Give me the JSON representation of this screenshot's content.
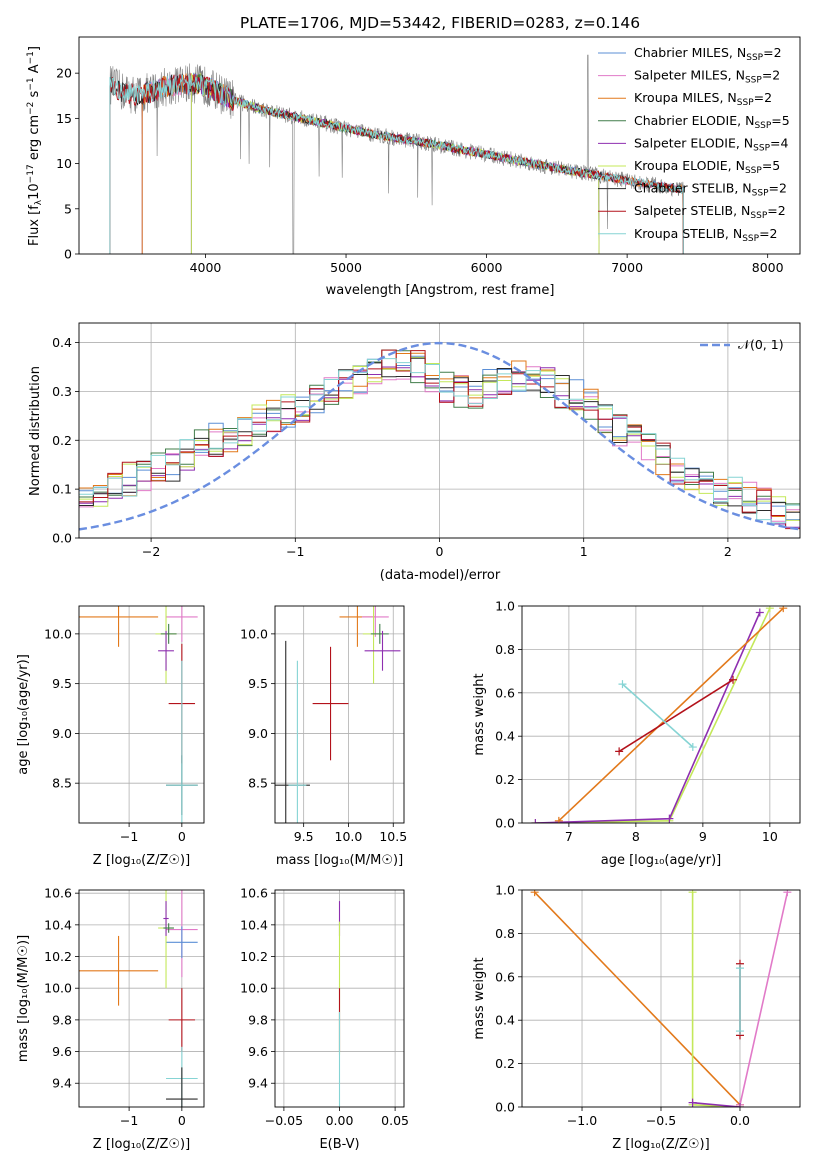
{
  "colors": {
    "Chabrier MILES": "#5b8fd6",
    "Salpeter MILES": "#e17ac8",
    "Kroupa MILES": "#e2791b",
    "Chabrier ELODIE": "#417d4a",
    "Salpeter ELODIE": "#8e2fb0",
    "Kroupa ELODIE": "#c4e85a",
    "Chabrier STELIB": "#2b2b2b",
    "Salpeter STELIB": "#b3121b",
    "Kroupa STELIB": "#86d4d4",
    "data": "#808080",
    "gauss": "#6a8ee0",
    "grid": "#b0b0b0"
  },
  "chart_data": [
    {
      "type": "line",
      "title": "PLATE=1706, MJD=53442, FIBERID=0283, z=0.146",
      "xlabel": "wavelength [Angstrom, rest frame]",
      "ylabel_main": "Flux [f",
      "ylabel_sub": "λ",
      "ylabel_rest": "10",
      "ylabel_exp": "−17",
      "ylabel_tail": " erg cm",
      "ylabel_exp2": "−2",
      "ylabel_tail2": " s",
      "ylabel_exp3": "−1",
      "ylabel_tail3": " A",
      "ylabel_exp4": "−1",
      "ylabel_end": "]",
      "xlim": [
        3100,
        8230
      ],
      "ylim": [
        0,
        24
      ],
      "xticks": [
        4000,
        5000,
        6000,
        7000,
        8000
      ],
      "yticks": [
        0,
        5,
        10,
        15,
        20
      ],
      "grid": false,
      "legend_position": "top-right",
      "legend": [
        {
          "name": "Chabrier MILES",
          "nssp": "2"
        },
        {
          "name": "Salpeter MILES",
          "nssp": "2"
        },
        {
          "name": "Kroupa MILES",
          "nssp": "2"
        },
        {
          "name": "Chabrier ELODIE",
          "nssp": "5"
        },
        {
          "name": "Salpeter ELODIE",
          "nssp": "4"
        },
        {
          "name": "Kroupa ELODIE",
          "nssp": "5"
        },
        {
          "name": "Chabrier STELIB",
          "nssp": "2"
        },
        {
          "name": "Salpeter STELIB",
          "nssp": "2"
        },
        {
          "name": "Kroupa STELIB",
          "nssp": "2"
        }
      ],
      "nssp_label": "N",
      "nssp_sub": "SSP",
      "continuum": {
        "x": [
          3320,
          3400,
          3500,
          3600,
          3700,
          3800,
          3900,
          4000,
          4100,
          4200,
          4400,
          4600,
          4800,
          5000,
          5200,
          5400,
          5600,
          5800,
          6000,
          6200,
          6400,
          6600,
          6800,
          7000,
          7200,
          7400
        ],
        "y": [
          18.8,
          18.0,
          17.6,
          17.8,
          18.5,
          18.7,
          18.9,
          18.6,
          17.8,
          17.0,
          16.0,
          15.3,
          14.6,
          13.9,
          13.2,
          12.7,
          12.2,
          11.6,
          11.0,
          10.4,
          9.8,
          9.2,
          8.7,
          8.1,
          7.6,
          7.1
        ]
      },
      "data_range": [
        3320,
        7400
      ],
      "model_ranges": {
        "MILES": [
          3550,
          7400
        ],
        "ELODIE": [
          3900,
          6800
        ],
        "STELIB": [
          3320,
          7400
        ]
      }
    },
    {
      "type": "step",
      "xlabel": "(data-model)/error",
      "ylabel": "Normed distribution",
      "xlim": [
        -2.5,
        2.5
      ],
      "ylim": [
        0,
        0.44
      ],
      "xticks": [
        -2,
        -1,
        0,
        1,
        2
      ],
      "yticks": [
        0.0,
        0.1,
        0.2,
        0.3,
        0.4
      ],
      "grid": true,
      "legend_position": "top-right",
      "legend_gauss": "𝒩(0, 1)",
      "bin_edges_start": -2.5,
      "bin_width": 0.1,
      "base_hist": [
        0.08,
        0.1,
        0.11,
        0.12,
        0.13,
        0.14,
        0.15,
        0.17,
        0.19,
        0.2,
        0.21,
        0.22,
        0.24,
        0.25,
        0.26,
        0.27,
        0.28,
        0.3,
        0.31,
        0.33,
        0.34,
        0.35,
        0.36,
        0.35,
        0.33,
        0.31,
        0.3,
        0.3,
        0.31,
        0.32,
        0.33,
        0.33,
        0.32,
        0.3,
        0.29,
        0.27,
        0.25,
        0.22,
        0.2,
        0.18,
        0.16,
        0.14,
        0.12,
        0.11,
        0.1,
        0.09,
        0.08,
        0.07,
        0.06,
        0.05
      ]
    },
    {
      "type": "scatter-errorbar",
      "xlabel": "Z [log₁₀(Z/Z☉)]",
      "ylabel": "age  [log₁₀(age/yr)]",
      "xlim": [
        -1.95,
        0.42
      ],
      "ylim": [
        8.1,
        10.28
      ],
      "xticks": [
        -1,
        0
      ],
      "yticks": [
        8.5,
        9.0,
        9.5,
        10.0
      ],
      "grid": true,
      "points": [
        {
          "model": "Kroupa MILES",
          "x": -1.2,
          "y": 10.17,
          "xerr": 0.75,
          "yerr": 0.3
        },
        {
          "model": "Salpeter MILES",
          "x": 0.0,
          "y": 10.17,
          "xerr": 0.3,
          "yerr": 0.25
        },
        {
          "model": "Kroupa ELODIE",
          "x": -0.3,
          "y": 10.0,
          "xerr": 0.2,
          "yerr": 0.5
        },
        {
          "model": "Chabrier ELODIE",
          "x": -0.25,
          "y": 10.0,
          "xerr": 0.15,
          "yerr": 0.1
        },
        {
          "model": "Salpeter ELODIE",
          "x": -0.3,
          "y": 9.83,
          "xerr": 0.15,
          "yerr": 0.2
        },
        {
          "model": "Salpeter STELIB",
          "x": 0.0,
          "y": 9.3,
          "xerr": 0.25,
          "yerr": 0.6
        },
        {
          "model": "Chabrier STELIB",
          "x": 0.0,
          "y": 8.48,
          "xerr": 0.3,
          "yerr": 0.3
        },
        {
          "model": "Kroupa STELIB",
          "x": 0.0,
          "y": 8.48,
          "xerr": 0.3,
          "yerr": 1.25
        }
      ]
    },
    {
      "type": "scatter-errorbar",
      "xlabel": "mass [log₁₀(M/M☉)]",
      "ylabel": "",
      "xlim": [
        9.18,
        10.62
      ],
      "ylim": [
        8.1,
        10.28
      ],
      "xticks": [
        9.5,
        10.0,
        10.5
      ],
      "yticks": [
        8.5,
        9.0,
        9.5,
        10.0
      ],
      "grid": true,
      "points": [
        {
          "model": "Kroupa MILES",
          "x": 10.1,
          "y": 10.17,
          "xerr": 0.2,
          "yerr": 0.3
        },
        {
          "model": "Salpeter MILES",
          "x": 10.3,
          "y": 10.17,
          "xerr": 0.15,
          "yerr": 0.2
        },
        {
          "model": "Kroupa ELODIE",
          "x": 10.28,
          "y": 10.0,
          "xerr": 0.12,
          "yerr": 0.5
        },
        {
          "model": "Chabrier ELODIE",
          "x": 10.35,
          "y": 10.0,
          "xerr": 0.1,
          "yerr": 0.1
        },
        {
          "model": "Salpeter ELODIE",
          "x": 10.38,
          "y": 9.83,
          "xerr": 0.2,
          "yerr": 0.2
        },
        {
          "model": "Salpeter STELIB",
          "x": 9.8,
          "y": 9.3,
          "xerr": 0.2,
          "yerr": 0.57
        },
        {
          "model": "Chabrier STELIB",
          "x": 9.3,
          "y": 8.48,
          "xerr": 0.27,
          "yerr": 1.45
        },
        {
          "model": "Kroupa STELIB",
          "x": 9.43,
          "y": 8.48,
          "xerr": 0.1,
          "yerr": 1.25
        }
      ]
    },
    {
      "type": "line",
      "xlabel": "age  [log₁₀(age/yr)]",
      "ylabel": "mass weight",
      "xlim": [
        6.3,
        10.45
      ],
      "ylim": [
        0,
        1.0
      ],
      "xticks": [
        7,
        8,
        9,
        10
      ],
      "yticks": [
        0.0,
        0.2,
        0.4,
        0.6,
        0.8,
        1.0
      ],
      "grid": true,
      "series": [
        {
          "model": "Kroupa ELODIE",
          "x": [
            6.5,
            8.5,
            10.0
          ],
          "y": [
            0.0,
            0.01,
            0.99
          ]
        },
        {
          "model": "Salpeter ELODIE",
          "x": [
            6.5,
            8.5,
            9.85
          ],
          "y": [
            0.0,
            0.02,
            0.97
          ]
        },
        {
          "model": "Kroupa MILES",
          "x": [
            6.85,
            10.2
          ],
          "y": [
            0.01,
            0.99
          ]
        },
        {
          "model": "Salpeter STELIB",
          "x": [
            7.75,
            9.45
          ],
          "y": [
            0.33,
            0.66
          ]
        },
        {
          "model": "Kroupa STELIB",
          "x": [
            7.8,
            8.85
          ],
          "y": [
            0.64,
            0.35
          ]
        }
      ]
    },
    {
      "type": "scatter-errorbar",
      "xlabel": "Z [log₁₀(Z/Z☉)]",
      "ylabel": "mass [log₁₀(M/M☉)]",
      "xlim": [
        -1.95,
        0.42
      ],
      "ylim": [
        9.25,
        10.62
      ],
      "xticks": [
        -1,
        0
      ],
      "yticks": [
        9.4,
        9.6,
        9.8,
        10.0,
        10.2,
        10.4,
        10.6
      ],
      "grid": true,
      "points": [
        {
          "model": "Kroupa MILES",
          "x": -1.2,
          "y": 10.11,
          "xerr": 0.75,
          "yerr": 0.22
        },
        {
          "model": "Salpeter MILES",
          "x": 0.0,
          "y": 10.37,
          "xerr": 0.3,
          "yerr": 0.3
        },
        {
          "model": "Chabrier MILES",
          "x": 0.0,
          "y": 10.29,
          "xerr": 0.3,
          "yerr": 0.1
        },
        {
          "model": "Kroupa ELODIE",
          "x": -0.3,
          "y": 10.38,
          "xerr": 0.15,
          "yerr": 0.38
        },
        {
          "model": "Salpeter ELODIE",
          "x": -0.3,
          "y": 10.44,
          "xerr": 0.05,
          "yerr": 0.11
        },
        {
          "model": "Chabrier ELODIE",
          "x": -0.25,
          "y": 10.38,
          "xerr": 0.1,
          "yerr": 0.03
        },
        {
          "model": "Salpeter STELIB",
          "x": 0.0,
          "y": 9.8,
          "xerr": 0.25,
          "yerr": 0.2
        },
        {
          "model": "Kroupa STELIB",
          "x": 0.0,
          "y": 9.43,
          "xerr": 0.3,
          "yerr": 0.2
        },
        {
          "model": "Chabrier STELIB",
          "x": 0.0,
          "y": 9.3,
          "xerr": 0.3,
          "yerr": 0.2
        }
      ]
    },
    {
      "type": "scatter-errorbar",
      "xlabel": "E(B-V)",
      "ylabel": "",
      "xlim": [
        -0.058,
        0.058
      ],
      "ylim": [
        9.25,
        10.62
      ],
      "xticks": [
        -0.05,
        0.0,
        0.05
      ],
      "xticklabels": [
        "−0.05",
        "0.00",
        "0.05"
      ],
      "yticks": [
        9.4,
        9.6,
        9.8,
        10.0,
        10.2,
        10.4,
        10.6
      ],
      "grid": true,
      "points": [
        {
          "model": "Salpeter ELODIE",
          "x": 0.0,
          "y": 10.44,
          "xerr": 0.0,
          "yerr": 0.11
        },
        {
          "model": "Kroupa ELODIE",
          "x": 0.0,
          "y": 10.0,
          "xerr": 0.0,
          "yerr": 0.42
        },
        {
          "model": "Salpeter STELIB",
          "x": 0.0,
          "y": 9.8,
          "xerr": 0.0,
          "yerr": 0.2
        },
        {
          "model": "Kroupa STELIB",
          "x": 0.0,
          "y": 9.55,
          "xerr": 0.0,
          "yerr": 0.3
        }
      ]
    },
    {
      "type": "line",
      "xlabel": "Z [log₁₀(Z/Z☉)]",
      "ylabel": "mass weight",
      "xlim": [
        -1.38,
        0.38
      ],
      "ylim": [
        0,
        1.0
      ],
      "xticks": [
        -1.0,
        -0.5,
        0.0
      ],
      "xticklabels": [
        "−1.0",
        "−0.5",
        "0.0"
      ],
      "yticks": [
        0.0,
        0.2,
        0.4,
        0.6,
        0.8,
        1.0
      ],
      "grid": true,
      "series": [
        {
          "model": "Kroupa MILES",
          "x": [
            -1.3,
            0.0
          ],
          "y": [
            0.99,
            0.01
          ]
        },
        {
          "model": "Salpeter MILES",
          "x": [
            0.0,
            0.3
          ],
          "y": [
            0.01,
            0.99
          ]
        },
        {
          "model": "Kroupa ELODIE",
          "x": [
            -0.3,
            -0.3,
            0.0
          ],
          "y": [
            0.99,
            0.01,
            0.0
          ]
        },
        {
          "model": "Salpeter ELODIE",
          "x": [
            -0.3,
            0.0
          ],
          "y": [
            0.02,
            0.0
          ]
        },
        {
          "model": "Salpeter STELIB",
          "x": [
            0.0,
            0.0
          ],
          "y": [
            0.33,
            0.66
          ]
        },
        {
          "model": "Kroupa STELIB",
          "x": [
            0.0,
            0.0
          ],
          "y": [
            0.35,
            0.64
          ]
        }
      ]
    }
  ]
}
